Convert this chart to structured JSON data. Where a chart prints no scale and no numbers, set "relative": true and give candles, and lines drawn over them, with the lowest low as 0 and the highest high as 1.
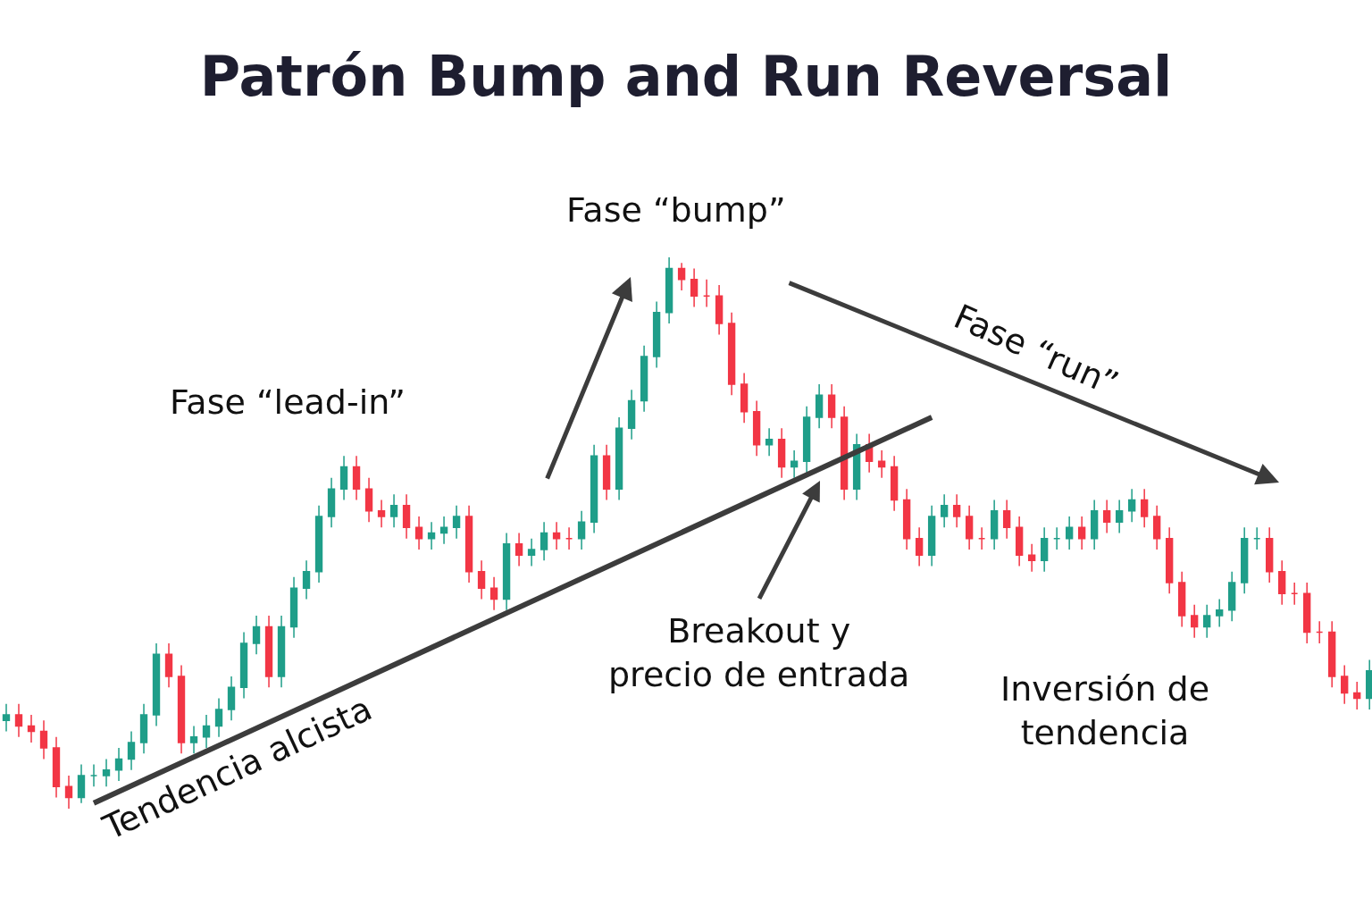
{
  "chart_data": {
    "type": "candlestick",
    "title": "Patrón Bump and Run Reversal",
    "relative": true,
    "categories": [
      null,
      null,
      null,
      null,
      null,
      null,
      null,
      null,
      null,
      null,
      null,
      null,
      null,
      null,
      null,
      null,
      null,
      null,
      null,
      null,
      null,
      null,
      null,
      null,
      null,
      null,
      null,
      null,
      null,
      null,
      null,
      null,
      null,
      null,
      null,
      null,
      null,
      null,
      null,
      null,
      null,
      null,
      null,
      null,
      null,
      null,
      null,
      null,
      null,
      null,
      null,
      null,
      null,
      null,
      null,
      null,
      null,
      null,
      null,
      null,
      null,
      null,
      null,
      null,
      null,
      null,
      null,
      null,
      null,
      null,
      null,
      null,
      null,
      null,
      null,
      null,
      null,
      null,
      null,
      null,
      null,
      null,
      null,
      null,
      null,
      null,
      null,
      null,
      null,
      null,
      null,
      null,
      null,
      null,
      null,
      null,
      null,
      null,
      null,
      null,
      null,
      null,
      null,
      null,
      null,
      null,
      null,
      null,
      null,
      null
    ],
    "ohlc": [
      [
        0.16,
        0.19,
        0.14,
        0.17
      ],
      [
        0.17,
        0.19,
        0.13,
        0.15
      ],
      [
        0.15,
        0.17,
        0.12,
        0.14
      ],
      [
        0.14,
        0.16,
        0.09,
        0.11
      ],
      [
        0.11,
        0.13,
        0.02,
        0.04
      ],
      [
        0.04,
        0.06,
        0,
        0.02
      ],
      [
        0.02,
        0.08,
        0.01,
        0.06
      ],
      [
        0.06,
        0.08,
        0.04,
        0.06
      ],
      [
        0.06,
        0.09,
        0.04,
        0.07
      ],
      [
        0.07,
        0.11,
        0.05,
        0.09
      ],
      [
        0.09,
        0.14,
        0.07,
        0.12
      ],
      [
        0.12,
        0.19,
        0.1,
        0.17
      ],
      [
        0.17,
        0.3,
        0.15,
        0.28
      ],
      [
        0.28,
        0.3,
        0.22,
        0.24
      ],
      [
        0.24,
        0.26,
        0.1,
        0.12
      ],
      [
        0.12,
        0.15,
        0.1,
        0.13
      ],
      [
        0.13,
        0.17,
        0.11,
        0.15
      ],
      [
        0.15,
        0.2,
        0.13,
        0.18
      ],
      [
        0.18,
        0.24,
        0.16,
        0.22
      ],
      [
        0.22,
        0.32,
        0.2,
        0.3
      ],
      [
        0.3,
        0.35,
        0.28,
        0.33
      ],
      [
        0.33,
        0.35,
        0.22,
        0.24
      ],
      [
        0.24,
        0.35,
        0.22,
        0.33
      ],
      [
        0.33,
        0.42,
        0.31,
        0.4
      ],
      [
        0.4,
        0.45,
        0.38,
        0.43
      ],
      [
        0.43,
        0.55,
        0.41,
        0.53
      ],
      [
        0.53,
        0.6,
        0.51,
        0.58
      ],
      [
        0.58,
        0.64,
        0.56,
        0.62
      ],
      [
        0.62,
        0.64,
        0.56,
        0.58
      ],
      [
        0.58,
        0.6,
        0.52,
        0.54
      ],
      [
        0.54,
        0.56,
        0.51,
        0.53
      ],
      [
        0.53,
        0.57,
        0.51,
        0.55
      ],
      [
        0.55,
        0.57,
        0.49,
        0.51
      ],
      [
        0.51,
        0.53,
        0.47,
        0.49
      ],
      [
        0.49,
        0.52,
        0.47,
        0.5
      ],
      [
        0.5,
        0.53,
        0.48,
        0.51
      ],
      [
        0.51,
        0.55,
        0.49,
        0.53
      ],
      [
        0.53,
        0.55,
        0.41,
        0.43
      ],
      [
        0.43,
        0.45,
        0.38,
        0.4
      ],
      [
        0.4,
        0.42,
        0.36,
        0.38
      ],
      [
        0.38,
        0.5,
        0.36,
        0.48
      ],
      [
        0.48,
        0.5,
        0.44,
        0.46
      ],
      [
        0.46,
        0.49,
        0.44,
        0.47
      ],
      [
        0.47,
        0.52,
        0.45,
        0.5
      ],
      [
        0.5,
        0.52,
        0.47,
        0.49
      ],
      [
        0.49,
        0.51,
        0.47,
        0.49
      ],
      [
        0.49,
        0.54,
        0.47,
        0.52
      ],
      [
        0.52,
        0.66,
        0.5,
        0.64
      ],
      [
        0.64,
        0.66,
        0.56,
        0.58
      ],
      [
        0.58,
        0.71,
        0.56,
        0.69
      ],
      [
        0.69,
        0.76,
        0.67,
        0.74
      ],
      [
        0.74,
        0.84,
        0.72,
        0.82
      ],
      [
        0.82,
        0.92,
        0.8,
        0.9
      ],
      [
        0.9,
        1,
        0.88,
        0.98
      ],
      [
        0.98,
        0.99,
        0.94,
        0.96
      ],
      [
        0.96,
        0.98,
        0.91,
        0.93
      ],
      [
        0.93,
        0.96,
        0.91,
        0.93
      ],
      [
        0.93,
        0.95,
        0.86,
        0.88
      ],
      [
        0.88,
        0.9,
        0.75,
        0.77
      ],
      [
        0.77,
        0.79,
        0.7,
        0.72
      ],
      [
        0.72,
        0.74,
        0.64,
        0.66
      ],
      [
        0.66,
        0.69,
        0.64,
        0.67
      ],
      [
        0.67,
        0.69,
        0.6,
        0.62
      ],
      [
        0.62,
        0.65,
        0.6,
        0.63
      ],
      [
        0.63,
        0.73,
        0.61,
        0.71
      ],
      [
        0.71,
        0.77,
        0.69,
        0.75
      ],
      [
        0.75,
        0.77,
        0.69,
        0.71
      ],
      [
        0.71,
        0.73,
        0.56,
        0.58
      ],
      [
        0.58,
        0.68,
        0.56,
        0.66
      ],
      [
        0.66,
        0.68,
        0.61,
        0.63
      ],
      [
        0.63,
        0.65,
        0.6,
        0.62
      ],
      [
        0.62,
        0.64,
        0.54,
        0.56
      ],
      [
        0.56,
        0.58,
        0.47,
        0.49
      ],
      [
        0.49,
        0.51,
        0.44,
        0.46
      ],
      [
        0.46,
        0.55,
        0.44,
        0.53
      ],
      [
        0.53,
        0.57,
        0.51,
        0.55
      ],
      [
        0.55,
        0.57,
        0.51,
        0.53
      ],
      [
        0.53,
        0.55,
        0.47,
        0.49
      ],
      [
        0.49,
        0.51,
        0.47,
        0.49
      ],
      [
        0.49,
        0.56,
        0.47,
        0.54
      ],
      [
        0.54,
        0.56,
        0.49,
        0.51
      ],
      [
        0.51,
        0.53,
        0.44,
        0.46
      ],
      [
        0.46,
        0.48,
        0.43,
        0.45
      ],
      [
        0.45,
        0.51,
        0.43,
        0.49
      ],
      [
        0.49,
        0.51,
        0.47,
        0.49
      ],
      [
        0.49,
        0.53,
        0.47,
        0.51
      ],
      [
        0.51,
        0.53,
        0.47,
        0.49
      ],
      [
        0.49,
        0.56,
        0.47,
        0.54
      ],
      [
        0.54,
        0.56,
        0.5,
        0.52
      ],
      [
        0.52,
        0.56,
        0.5,
        0.54
      ],
      [
        0.54,
        0.58,
        0.52,
        0.56
      ],
      [
        0.56,
        0.58,
        0.51,
        0.53
      ],
      [
        0.53,
        0.55,
        0.47,
        0.49
      ],
      [
        0.49,
        0.51,
        0.39,
        0.41
      ],
      [
        0.41,
        0.43,
        0.33,
        0.35
      ],
      [
        0.35,
        0.37,
        0.31,
        0.33
      ],
      [
        0.33,
        0.37,
        0.31,
        0.35
      ],
      [
        0.35,
        0.38,
        0.33,
        0.36
      ],
      [
        0.36,
        0.43,
        0.34,
        0.41
      ],
      [
        0.41,
        0.51,
        0.39,
        0.49
      ],
      [
        0.49,
        0.51,
        0.47,
        0.49
      ],
      [
        0.49,
        0.51,
        0.41,
        0.43
      ],
      [
        0.43,
        0.45,
        0.37,
        0.39
      ],
      [
        0.39,
        0.41,
        0.37,
        0.39
      ],
      [
        0.39,
        0.41,
        0.3,
        0.32
      ],
      [
        0.32,
        0.34,
        0.3,
        0.32
      ],
      [
        0.32,
        0.34,
        0.22,
        0.24
      ],
      [
        0.24,
        0.26,
        0.19,
        0.21
      ],
      [
        0.21,
        0.23,
        0.18,
        0.2
      ],
      [
        0.2,
        0.27,
        0.18,
        0.25
      ]
    ],
    "series": [
      {
        "type": "line",
        "values": [
          null,
          null,
          null,
          null,
          null,
          null,
          null,
          0.01,
          null,
          null,
          null,
          null,
          null,
          null,
          null,
          null,
          null,
          null,
          null,
          null,
          null,
          null,
          null,
          null,
          null,
          null,
          null,
          null,
          null,
          null,
          null,
          null,
          null,
          null,
          null,
          null,
          null,
          null,
          null,
          null,
          null,
          null,
          null,
          null,
          null,
          null,
          null,
          null,
          null,
          null,
          null,
          null,
          null,
          null,
          null,
          null,
          null,
          null,
          null,
          null,
          null,
          null,
          null,
          null,
          null,
          null,
          null,
          null,
          null,
          null,
          null,
          null,
          null,
          null,
          0.71,
          null,
          null,
          null,
          null,
          null,
          null,
          null,
          null,
          null,
          null,
          null,
          null,
          null,
          null,
          null,
          null,
          null,
          null,
          null,
          null,
          null,
          null,
          null,
          null,
          null,
          null,
          null,
          null,
          null,
          null,
          null,
          null,
          null,
          null,
          null
        ],
        "color": "#3c3c3c"
      }
    ],
    "annotations": [
      "Fase “lead-in”",
      "Fase “bump”",
      "Fase “run”",
      "Breakout y\nprecio de entrada",
      "Inversión de\ntendencia",
      "Tendencia alcista"
    ]
  }
}
